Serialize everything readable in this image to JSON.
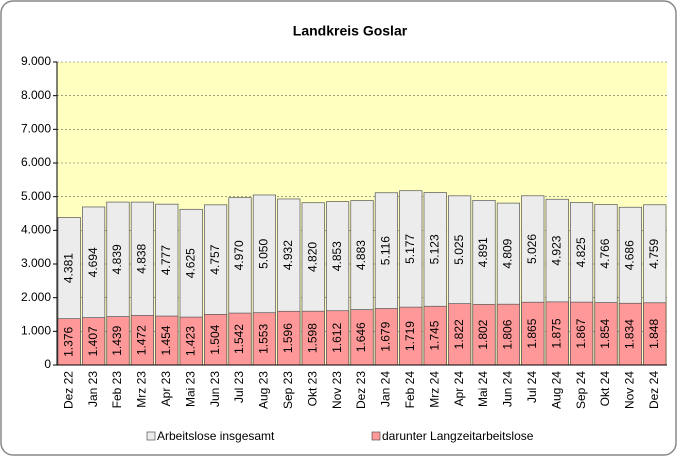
{
  "chart_data": {
    "type": "bar",
    "title": "Landkreis Goslar",
    "categories": [
      "Dez 22",
      "Jan 23",
      "Feb 23",
      "Mrz 23",
      "Apr 23",
      "Mai 23",
      "Jun 23",
      "Jul 23",
      "Aug 23",
      "Sep 23",
      "Okt 23",
      "Nov 23",
      "Dez 23",
      "Jan 24",
      "Feb 24",
      "Mrz 24",
      "Apr 24",
      "Mai 24",
      "Jun 24",
      "Jul 24",
      "Aug 24",
      "Sep 24",
      "Okt 24",
      "Nov 24",
      "Dez 24"
    ],
    "series": [
      {
        "name": "Arbeitslose insgesamt",
        "color": "#ececec",
        "values": [
          4381,
          4694,
          4839,
          4838,
          4777,
          4625,
          4757,
          4970,
          5050,
          4932,
          4820,
          4853,
          4883,
          5116,
          5177,
          5123,
          5025,
          4891,
          4809,
          5026,
          4923,
          4825,
          4766,
          4686,
          4759
        ],
        "value_labels": [
          "4.381",
          "4.694",
          "4.839",
          "4.838",
          "4.777",
          "4.625",
          "4.757",
          "4.970",
          "5.050",
          "4.932",
          "4.820",
          "4.853",
          "4.883",
          "5.116",
          "5.177",
          "5.123",
          "5.025",
          "4.891",
          "4.809",
          "5.026",
          "4.923",
          "4.825",
          "4.766",
          "4.686",
          "4.759"
        ]
      },
      {
        "name": "darunter Langzeitarbeitslose",
        "color": "#ff9999",
        "values": [
          1376,
          1407,
          1439,
          1472,
          1454,
          1423,
          1504,
          1542,
          1553,
          1596,
          1598,
          1612,
          1646,
          1679,
          1719,
          1745,
          1822,
          1802,
          1806,
          1865,
          1875,
          1867,
          1854,
          1834,
          1848
        ],
        "value_labels": [
          "1.376",
          "1.407",
          "1.439",
          "1.472",
          "1.454",
          "1.423",
          "1.504",
          "1.542",
          "1.553",
          "1.596",
          "1.598",
          "1.612",
          "1.646",
          "1.679",
          "1.719",
          "1.745",
          "1.822",
          "1.802",
          "1.806",
          "1.865",
          "1.875",
          "1.867",
          "1.854",
          "1.834",
          "1.848"
        ]
      }
    ],
    "ylim": [
      0,
      9000
    ],
    "yticks": [
      0,
      {
        "value": 1000,
        "label": "1.000"
      },
      {
        "value": 2000,
        "label": "2.000"
      },
      {
        "value": 3000,
        "label": "3.000"
      },
      {
        "value": 4000,
        "label": "4.000"
      },
      {
        "value": 5000,
        "label": "5.000"
      },
      {
        "value": 6000,
        "label": "6.000"
      },
      {
        "value": 7000,
        "label": "7.000"
      },
      {
        "value": 8000,
        "label": "8.000"
      },
      {
        "value": 9000,
        "label": "9.000"
      }
    ],
    "grid": true,
    "legend": "bottom"
  }
}
